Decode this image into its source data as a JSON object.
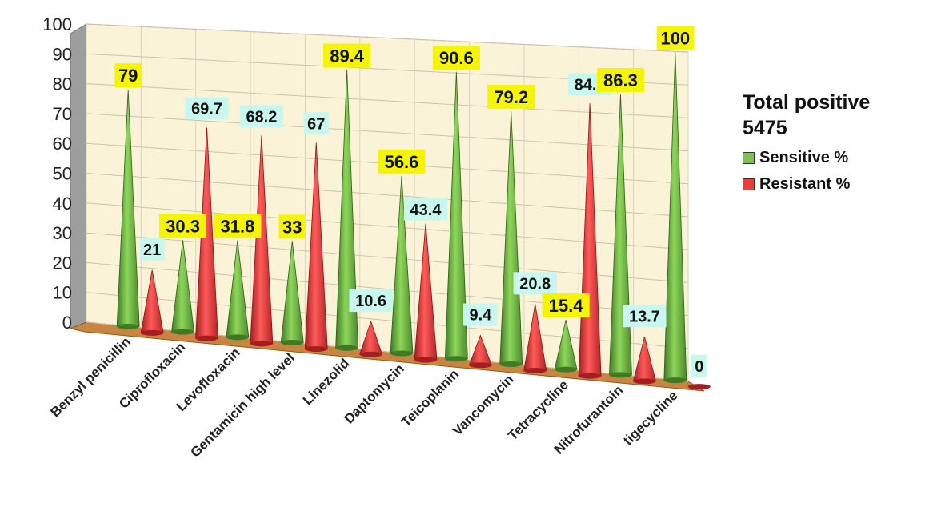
{
  "chart_data": {
    "type": "bar",
    "style": "3d-cone",
    "categories": [
      "Benzyl penicillin",
      "Ciprofloxacin",
      "Levofloxacin",
      "Gentamicin high level",
      "Linezolid",
      "Daptomycin",
      "Teicoplanin",
      "Vancomycin",
      "Tetracycline",
      "Nitrofurantoin",
      "tigecycline"
    ],
    "series": [
      {
        "name": "Sensitive %",
        "color": "#7dc34f",
        "label_bg": "#f5f500",
        "values": [
          79,
          30.3,
          31.8,
          33,
          89.4,
          56.6,
          90.6,
          79.2,
          15.4,
          86.3,
          100
        ]
      },
      {
        "name": "Resistant %",
        "color": "#ee3b3b",
        "label_bg": "#c8f7f0",
        "values": [
          21,
          69.7,
          68.2,
          67,
          10.6,
          43.4,
          9.4,
          20.8,
          84.6,
          13.7,
          0
        ]
      }
    ],
    "y_ticks": [
      "0",
      "10",
      "20",
      "30",
      "40",
      "50",
      "60",
      "70",
      "80",
      "90",
      "100"
    ],
    "ylim": [
      0,
      100
    ],
    "grid": true,
    "legend": {
      "title_line1": "Total positive",
      "title_line2": "5475",
      "position": "right"
    },
    "wall_color": "#fbf3d8",
    "floor_color": "#c98540"
  }
}
